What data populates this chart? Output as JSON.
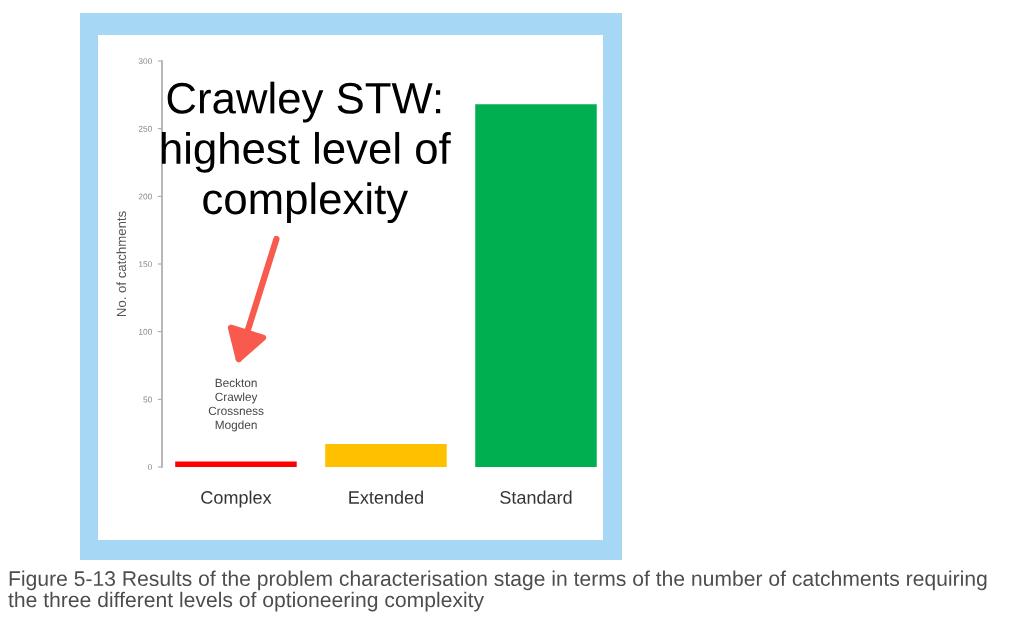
{
  "chart_data": {
    "type": "bar",
    "ylabel": "No. of catchments",
    "categories": [
      "Complex",
      "Extended",
      "Standard"
    ],
    "values": [
      4,
      17,
      268
    ],
    "colors": [
      "#ff0000",
      "#ffc000",
      "#00b050"
    ],
    "ylim": [
      0,
      300
    ],
    "yticks": [
      0,
      50,
      100,
      150,
      200,
      250,
      300
    ],
    "grid": false,
    "annotations": [
      "Beckton\nCrawley\nCrossness\nMogden",
      "Crawley STW:\nhighest level of\ncomplexity",
      "Figure 5-13 Results of the problem characterisation stage in terms of the number of catchments requiring\nthe three different levels of optioneering complexity"
    ]
  }
}
